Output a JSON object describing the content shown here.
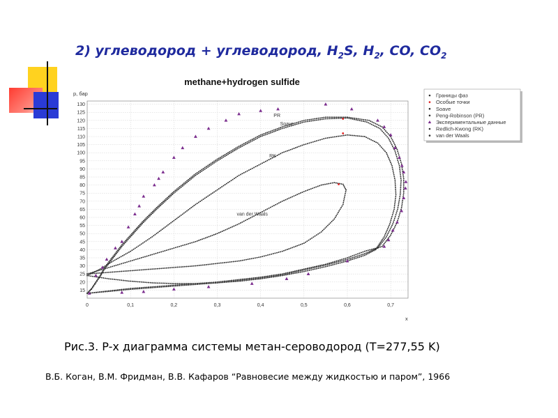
{
  "slide": {
    "title_parts": [
      "2) углеводород + углеводород, H",
      "2",
      "S, H",
      "2",
      ", CO, CO",
      "2"
    ],
    "caption": "Рис.3. P-x диаграмма системы метан-сероводород (T=277,55 K)",
    "reference": "В.Б. Коган, В.М. Фридман, В.В. Кафаров “Равновесие между жидкостью и паром”, 1966",
    "colors": {
      "title": "#1f2a9e",
      "deco_yellow": "#ffd21f",
      "deco_red": "#ff3b30",
      "deco_blue": "#2a3bd6"
    }
  },
  "chart_data": {
    "type": "scatter",
    "title": "methane+hydrogen sulfide",
    "xlabel": "x",
    "ylabel": "p, бар",
    "xlim": [
      0,
      0.74
    ],
    "ylim": [
      10,
      132
    ],
    "xticks": [
      0,
      0.1,
      0.2,
      0.3,
      0.4,
      0.5,
      0.6,
      0.7
    ],
    "xtick_labels": [
      "0",
      "0,1",
      "0,2",
      "0,3",
      "0,4",
      "0,5",
      "0,6",
      "0,7"
    ],
    "yticks": [
      15,
      20,
      25,
      30,
      35,
      40,
      45,
      50,
      55,
      60,
      65,
      70,
      75,
      80,
      85,
      90,
      95,
      100,
      105,
      110,
      115,
      120,
      125,
      130
    ],
    "grid": true,
    "legend_position": "top-right",
    "legend": [
      {
        "label": "Границы фаз",
        "color": "#333333",
        "marker": "dot"
      },
      {
        "label": "Особые точки",
        "color": "#e02020",
        "marker": "dot"
      },
      {
        "label": "Soave",
        "color": "#333333",
        "marker": "dot"
      },
      {
        "label": "Peng-Robinson (PR)",
        "color": "#333333",
        "marker": "dot"
      },
      {
        "label": "Экспериментальные данные",
        "color": "#7b2d8e",
        "marker": "triangle"
      },
      {
        "label": "Redlich-Kwong (RK)",
        "color": "#333333",
        "marker": "dot"
      },
      {
        "label": "van der Waals",
        "color": "#333333",
        "marker": "dot"
      }
    ],
    "curve_labels": [
      {
        "text": "PR",
        "x": 0.43,
        "y": 122
      },
      {
        "text": "Soave",
        "x": 0.445,
        "y": 117
      },
      {
        "text": "RK",
        "x": 0.42,
        "y": 97
      },
      {
        "text": "van der Waals",
        "x": 0.345,
        "y": 61
      }
    ],
    "series": [
      {
        "name": "Peng-Robinson (PR)",
        "color": "#333333",
        "bubble": [
          [
            0,
            13
          ],
          [
            0.01,
            16
          ],
          [
            0.02,
            20
          ],
          [
            0.03,
            24
          ],
          [
            0.04,
            29
          ],
          [
            0.06,
            36
          ],
          [
            0.08,
            43
          ],
          [
            0.1,
            49
          ],
          [
            0.13,
            58
          ],
          [
            0.16,
            66
          ],
          [
            0.2,
            76
          ],
          [
            0.25,
            87
          ],
          [
            0.3,
            96
          ],
          [
            0.35,
            104
          ],
          [
            0.4,
            111
          ],
          [
            0.45,
            116
          ],
          [
            0.5,
            120
          ],
          [
            0.55,
            122
          ],
          [
            0.6,
            122
          ],
          [
            0.65,
            120
          ],
          [
            0.68,
            116
          ],
          [
            0.7,
            110
          ],
          [
            0.715,
            102
          ],
          [
            0.725,
            93
          ],
          [
            0.73,
            84
          ],
          [
            0.73,
            75
          ],
          [
            0.725,
            66
          ],
          [
            0.715,
            57
          ],
          [
            0.7,
            49
          ],
          [
            0.68,
            42
          ]
        ],
        "dew": [
          [
            0,
            13
          ],
          [
            0.05,
            14.5
          ],
          [
            0.1,
            16
          ],
          [
            0.15,
            17
          ],
          [
            0.2,
            18
          ],
          [
            0.25,
            19
          ],
          [
            0.3,
            20
          ],
          [
            0.35,
            21.5
          ],
          [
            0.4,
            23
          ],
          [
            0.45,
            25
          ],
          [
            0.5,
            28
          ],
          [
            0.55,
            31
          ],
          [
            0.6,
            35
          ],
          [
            0.64,
            39
          ],
          [
            0.68,
            42
          ]
        ]
      },
      {
        "name": "Soave",
        "color": "#333333",
        "bubble": [
          [
            0,
            13
          ],
          [
            0.01,
            15.5
          ],
          [
            0.02,
            19.5
          ],
          [
            0.03,
            23.5
          ],
          [
            0.04,
            28
          ],
          [
            0.06,
            35
          ],
          [
            0.08,
            42
          ],
          [
            0.1,
            48
          ],
          [
            0.13,
            57
          ],
          [
            0.16,
            65
          ],
          [
            0.2,
            75
          ],
          [
            0.25,
            86
          ],
          [
            0.3,
            95
          ],
          [
            0.35,
            103
          ],
          [
            0.4,
            110
          ],
          [
            0.45,
            115
          ],
          [
            0.5,
            119
          ],
          [
            0.55,
            121
          ],
          [
            0.6,
            121.5
          ],
          [
            0.645,
            119
          ],
          [
            0.675,
            115
          ],
          [
            0.695,
            109
          ],
          [
            0.71,
            101
          ],
          [
            0.72,
            92
          ],
          [
            0.724,
            83
          ],
          [
            0.722,
            74
          ],
          [
            0.716,
            65
          ],
          [
            0.705,
            56
          ],
          [
            0.69,
            48
          ],
          [
            0.67,
            41
          ]
        ],
        "dew": [
          [
            0,
            13
          ],
          [
            0.05,
            14.2
          ],
          [
            0.1,
            15.5
          ],
          [
            0.15,
            16.5
          ],
          [
            0.2,
            17.5
          ],
          [
            0.25,
            18.5
          ],
          [
            0.3,
            19.5
          ],
          [
            0.35,
            21
          ],
          [
            0.4,
            22.5
          ],
          [
            0.45,
            24.5
          ],
          [
            0.5,
            27.5
          ],
          [
            0.55,
            30.5
          ],
          [
            0.6,
            34
          ],
          [
            0.64,
            37.5
          ],
          [
            0.67,
            41
          ]
        ]
      },
      {
        "name": "Redlich-Kwong (RK)",
        "color": "#333333",
        "bubble": [
          [
            0,
            24
          ],
          [
            0.03,
            28
          ],
          [
            0.06,
            33
          ],
          [
            0.1,
            39
          ],
          [
            0.15,
            48
          ],
          [
            0.2,
            58
          ],
          [
            0.25,
            68
          ],
          [
            0.3,
            77
          ],
          [
            0.35,
            86
          ],
          [
            0.4,
            93
          ],
          [
            0.45,
            100
          ],
          [
            0.5,
            105
          ],
          [
            0.55,
            109
          ],
          [
            0.6,
            111
          ],
          [
            0.64,
            110
          ],
          [
            0.67,
            106
          ],
          [
            0.69,
            100
          ],
          [
            0.703,
            92
          ],
          [
            0.71,
            83
          ],
          [
            0.712,
            74
          ],
          [
            0.708,
            65
          ],
          [
            0.698,
            56
          ],
          [
            0.685,
            48
          ],
          [
            0.665,
            40
          ]
        ],
        "dew": [
          [
            0,
            24
          ],
          [
            0.05,
            22
          ],
          [
            0.1,
            20.5
          ],
          [
            0.15,
            19.5
          ],
          [
            0.2,
            19
          ],
          [
            0.25,
            19
          ],
          [
            0.3,
            19.5
          ],
          [
            0.35,
            20.5
          ],
          [
            0.4,
            22
          ],
          [
            0.45,
            24
          ],
          [
            0.5,
            26.5
          ],
          [
            0.55,
            29.5
          ],
          [
            0.6,
            33
          ],
          [
            0.64,
            36.5
          ],
          [
            0.665,
            40
          ]
        ]
      },
      {
        "name": "van der Waals",
        "color": "#333333",
        "bubble": [
          [
            0,
            25
          ],
          [
            0.05,
            29
          ],
          [
            0.1,
            33
          ],
          [
            0.15,
            37
          ],
          [
            0.2,
            41
          ],
          [
            0.25,
            45
          ],
          [
            0.3,
            50
          ],
          [
            0.35,
            56
          ],
          [
            0.4,
            63
          ],
          [
            0.45,
            70
          ],
          [
            0.5,
            76
          ],
          [
            0.54,
            80
          ],
          [
            0.57,
            81.5
          ],
          [
            0.59,
            80.5
          ],
          [
            0.597,
            77
          ]
        ],
        "dew": [
          [
            0,
            25
          ],
          [
            0.05,
            26
          ],
          [
            0.1,
            27
          ],
          [
            0.15,
            28
          ],
          [
            0.2,
            29
          ],
          [
            0.25,
            30
          ],
          [
            0.3,
            31.5
          ],
          [
            0.35,
            33
          ],
          [
            0.4,
            35.5
          ],
          [
            0.45,
            39
          ],
          [
            0.5,
            44
          ],
          [
            0.54,
            51
          ],
          [
            0.57,
            59
          ],
          [
            0.59,
            68
          ],
          [
            0.597,
            77
          ]
        ]
      }
    ],
    "experimental": {
      "name": "Экспериментальные данные",
      "color": "#7b2d8e",
      "points": [
        [
          0.005,
          13
        ],
        [
          0.02,
          24
        ],
        [
          0.035,
          29
        ],
        [
          0.045,
          34
        ],
        [
          0.065,
          41
        ],
        [
          0.08,
          45
        ],
        [
          0.095,
          54
        ],
        [
          0.11,
          62
        ],
        [
          0.12,
          67
        ],
        [
          0.13,
          73
        ],
        [
          0.155,
          80
        ],
        [
          0.165,
          84
        ],
        [
          0.175,
          88
        ],
        [
          0.2,
          97
        ],
        [
          0.22,
          103
        ],
        [
          0.25,
          110
        ],
        [
          0.28,
          115
        ],
        [
          0.32,
          120
        ],
        [
          0.35,
          124
        ],
        [
          0.4,
          126
        ],
        [
          0.44,
          127
        ],
        [
          0.55,
          130
        ],
        [
          0.61,
          127
        ],
        [
          0.67,
          120
        ],
        [
          0.685,
          116
        ],
        [
          0.7,
          111
        ],
        [
          0.71,
          103
        ],
        [
          0.72,
          97
        ],
        [
          0.726,
          92
        ],
        [
          0.73,
          88
        ],
        [
          0.735,
          82
        ],
        [
          0.734,
          78
        ],
        [
          0.73,
          72
        ],
        [
          0.725,
          64
        ],
        [
          0.715,
          57
        ],
        [
          0.705,
          52
        ],
        [
          0.695,
          46
        ],
        [
          0.685,
          42
        ],
        [
          0.6,
          33
        ],
        [
          0.51,
          25
        ],
        [
          0.46,
          22
        ],
        [
          0.38,
          19
        ],
        [
          0.28,
          17
        ],
        [
          0.2,
          15.5
        ],
        [
          0.13,
          14
        ],
        [
          0.08,
          13.5
        ]
      ]
    },
    "special_points": {
      "name": "Особые точки",
      "color": "#e02020",
      "points": [
        [
          0.58,
          80.5
        ],
        [
          0.59,
          112
        ],
        [
          0.59,
          121
        ]
      ]
    }
  }
}
